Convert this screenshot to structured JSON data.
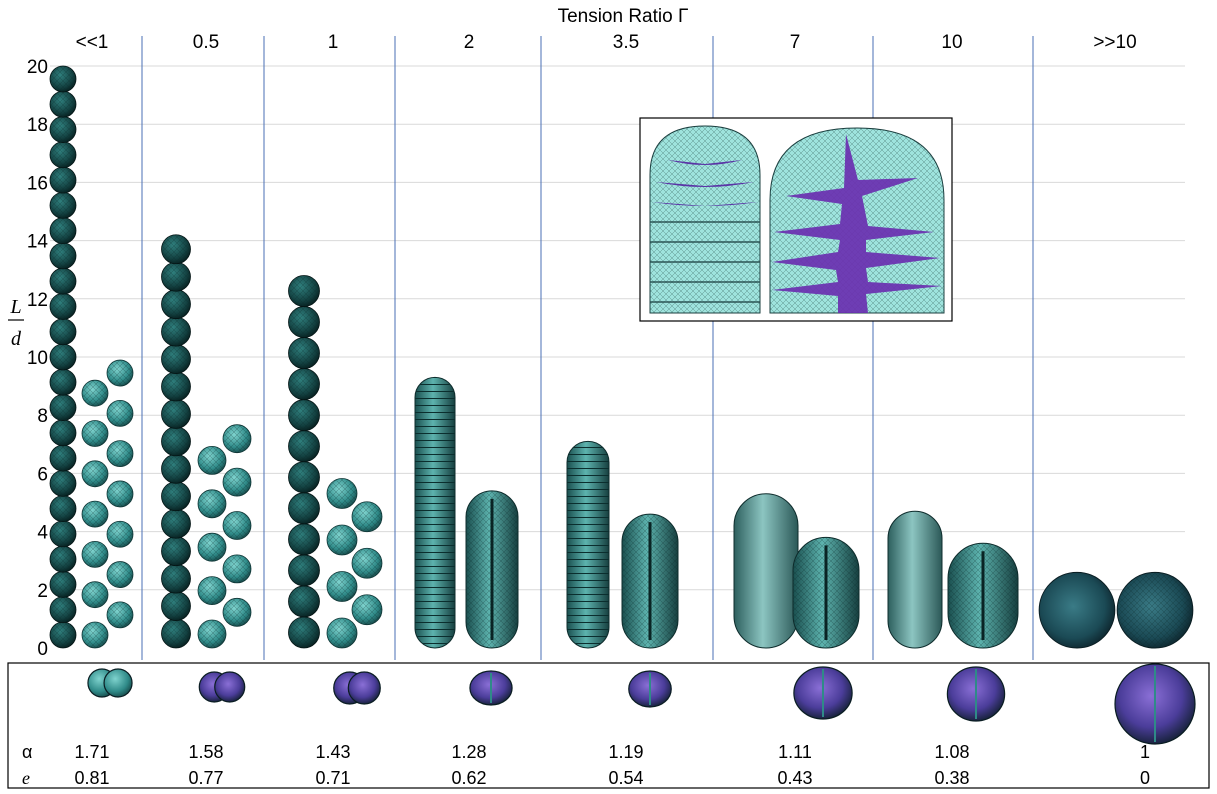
{
  "title": "Tension Ratio Γ",
  "y_axis": {
    "label_top": "L",
    "label_bottom": "d",
    "ticks": [
      "0",
      "2",
      "4",
      "6",
      "8",
      "10",
      "12",
      "14",
      "16",
      "18",
      "20"
    ]
  },
  "row_labels": {
    "alpha": "α",
    "e": "e"
  },
  "columns": [
    {
      "gamma": "<<1",
      "alpha": "1.71",
      "e": "0.81",
      "chain_length": 20,
      "twisted_length": 10
    },
    {
      "gamma": "0.5",
      "alpha": "1.58",
      "e": "0.77",
      "chain_length": 14.2,
      "twisted_length": 7.7
    },
    {
      "gamma": "1",
      "alpha": "1.43",
      "e": "0.71",
      "chain_length": 12.8,
      "twisted_length": 6.6
    },
    {
      "gamma": "2",
      "alpha": "1.28",
      "e": "0.62",
      "chain_length": 9.3,
      "twisted_length": 5.4
    },
    {
      "gamma": "3.5",
      "alpha": "1.19",
      "e": "0.54",
      "chain_length": 7.1,
      "twisted_length": 4.6
    },
    {
      "gamma": "7",
      "alpha": "1.11",
      "e": "0.43",
      "chain_length": 5.3,
      "twisted_length": 3.8
    },
    {
      "gamma": "10",
      "alpha": "1.08",
      "e": "0.38",
      "chain_length": 4.7,
      "twisted_length": 3.6
    },
    {
      "gamma": ">>10",
      "alpha": "1",
      "e": "0",
      "chain_length": 2.6,
      "twisted_length": 2.6
    }
  ],
  "colors": {
    "cell_dark": "#0f3a3a",
    "cell_mid": "#1f6b6b",
    "cell_light": "#5fb8b4",
    "cell_pale": "#a9e3df",
    "purple": "#6a3fae",
    "grid": "#d9d9d9",
    "divider": "#4a6fb5"
  },
  "icons": {
    "inset": "cell-interface-closeup",
    "view": "top-view-cross-section"
  }
}
